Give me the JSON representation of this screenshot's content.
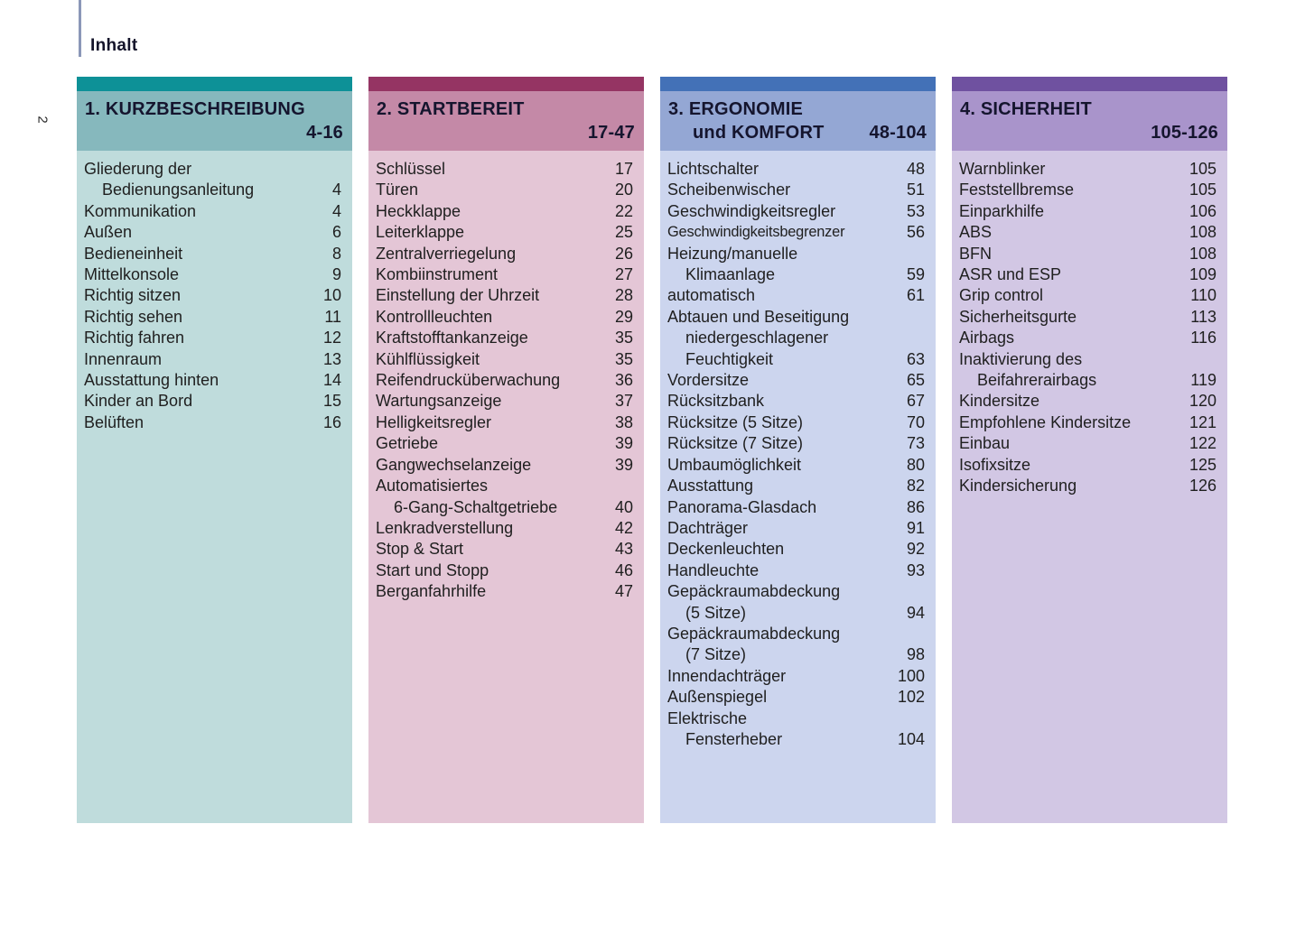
{
  "page": {
    "label": "Inhalt",
    "side_page_number": "2"
  },
  "sections": [
    {
      "title_lines": [
        "1. KURZBESCHREIBUNG"
      ],
      "range": "4-16",
      "colors": {
        "strip": "#0D9197",
        "header": "#86B8BD",
        "body": "#BFDCDC"
      },
      "entries": [
        {
          "lines": [
            "Gliederung der",
            "Bedienungsanleitung"
          ],
          "page": "4"
        },
        {
          "lines": [
            "Kommunikation"
          ],
          "page": "4"
        },
        {
          "lines": [
            "Außen"
          ],
          "page": "6"
        },
        {
          "lines": [
            "Bedieneinheit"
          ],
          "page": "8"
        },
        {
          "lines": [
            "Mittelkonsole"
          ],
          "page": "9"
        },
        {
          "lines": [
            "Richtig sitzen"
          ],
          "page": "10"
        },
        {
          "lines": [
            "Richtig sehen"
          ],
          "page": "11"
        },
        {
          "lines": [
            "Richtig fahren"
          ],
          "page": "12"
        },
        {
          "lines": [
            "Innenraum"
          ],
          "page": "13"
        },
        {
          "lines": [
            "Ausstattung hinten"
          ],
          "page": "14"
        },
        {
          "lines": [
            "Kinder an Bord"
          ],
          "page": "15"
        },
        {
          "lines": [
            "Belüften"
          ],
          "page": "16"
        }
      ]
    },
    {
      "title_lines": [
        "2. STARTBEREIT"
      ],
      "range": "17-47",
      "colors": {
        "strip": "#953463",
        "header": "#C489A7",
        "body": "#E4C6D6"
      },
      "entries": [
        {
          "lines": [
            "Schlüssel"
          ],
          "page": "17"
        },
        {
          "lines": [
            "Türen"
          ],
          "page": "20"
        },
        {
          "lines": [
            "Heckklappe"
          ],
          "page": "22"
        },
        {
          "lines": [
            "Leiterklappe"
          ],
          "page": "25"
        },
        {
          "lines": [
            "Zentralverriegelung"
          ],
          "page": "26"
        },
        {
          "lines": [
            "Kombiinstrument"
          ],
          "page": "27"
        },
        {
          "lines": [
            "Einstellung der Uhrzeit"
          ],
          "page": "28"
        },
        {
          "lines": [
            "Kontrollleuchten"
          ],
          "page": "29"
        },
        {
          "lines": [
            "Kraftstofftankanzeige"
          ],
          "page": "35"
        },
        {
          "lines": [
            "Kühlflüssigkeit"
          ],
          "page": "35"
        },
        {
          "lines": [
            "Reifendrucküberwachung"
          ],
          "page": "36"
        },
        {
          "lines": [
            "Wartungsanzeige"
          ],
          "page": "37"
        },
        {
          "lines": [
            "Helligkeitsregler"
          ],
          "page": "38"
        },
        {
          "lines": [
            "Getriebe"
          ],
          "page": "39"
        },
        {
          "lines": [
            "Gangwechselanzeige"
          ],
          "page": "39"
        },
        {
          "lines": [
            "Automatisiertes",
            "6-Gang-Schaltgetriebe"
          ],
          "page": "40"
        },
        {
          "lines": [
            "Lenkradverstellung"
          ],
          "page": "42"
        },
        {
          "lines": [
            "Stop & Start"
          ],
          "page": "43"
        },
        {
          "lines": [
            "Start und Stopp"
          ],
          "page": "46"
        },
        {
          "lines": [
            "Berganfahrhilfe"
          ],
          "page": "47"
        }
      ]
    },
    {
      "title_lines": [
        "3. ERGONOMIE",
        "und KOMFORT"
      ],
      "range": "48-104",
      "colors": {
        "strip": "#4371B7",
        "header": "#94A7D4",
        "body": "#CCD5EE"
      },
      "entries": [
        {
          "lines": [
            "Lichtschalter"
          ],
          "page": "48"
        },
        {
          "lines": [
            "Scheibenwischer"
          ],
          "page": "51"
        },
        {
          "lines": [
            "Geschwindigkeitsregler"
          ],
          "page": "53"
        },
        {
          "lines": [
            "Geschwindigkeitsbegrenzer"
          ],
          "page": "56",
          "condensed": true
        },
        {
          "lines": [
            "Heizung/manuelle",
            "Klimaanlage"
          ],
          "page": "59"
        },
        {
          "lines": [
            "automatisch"
          ],
          "page": "61"
        },
        {
          "lines": [
            "Abtauen und Beseitigung",
            "niedergeschlagener",
            "Feuchtigkeit"
          ],
          "page": "63"
        },
        {
          "lines": [
            "Vordersitze"
          ],
          "page": "65"
        },
        {
          "lines": [
            "Rücksitzbank"
          ],
          "page": "67"
        },
        {
          "lines": [
            "Rücksitze (5 Sitze)"
          ],
          "page": "70"
        },
        {
          "lines": [
            "Rücksitze (7 Sitze)"
          ],
          "page": "73"
        },
        {
          "lines": [
            "Umbaumöglichkeit"
          ],
          "page": "80"
        },
        {
          "lines": [
            "Ausstattung"
          ],
          "page": "82"
        },
        {
          "lines": [
            "Panorama-Glasdach"
          ],
          "page": "86"
        },
        {
          "lines": [
            "Dachträger"
          ],
          "page": "91"
        },
        {
          "lines": [
            "Deckenleuchten"
          ],
          "page": "92"
        },
        {
          "lines": [
            "Handleuchte"
          ],
          "page": "93"
        },
        {
          "lines": [
            "Gepäckraumabdeckung",
            "(5 Sitze)"
          ],
          "page": "94"
        },
        {
          "lines": [
            "Gepäckraumabdeckung",
            "(7 Sitze)"
          ],
          "page": "98"
        },
        {
          "lines": [
            "Innendachträger"
          ],
          "page": "100"
        },
        {
          "lines": [
            "Außenspiegel"
          ],
          "page": "102"
        },
        {
          "lines": [
            "Elektrische",
            "Fensterheber"
          ],
          "page": "104"
        }
      ]
    },
    {
      "title_lines": [
        "4. SICHERHEIT"
      ],
      "range": "105-126",
      "colors": {
        "strip": "#6F51A0",
        "header": "#A994CB",
        "body": "#D2C7E4"
      },
      "entries": [
        {
          "lines": [
            "Warnblinker"
          ],
          "page": "105"
        },
        {
          "lines": [
            "Feststellbremse"
          ],
          "page": "105"
        },
        {
          "lines": [
            "Einparkhilfe"
          ],
          "page": "106"
        },
        {
          "lines": [
            "ABS"
          ],
          "page": "108"
        },
        {
          "lines": [
            "BFN"
          ],
          "page": "108"
        },
        {
          "lines": [
            "ASR und ESP"
          ],
          "page": "109"
        },
        {
          "lines": [
            "Grip control"
          ],
          "page": "110"
        },
        {
          "lines": [
            "Sicherheitsgurte"
          ],
          "page": "113"
        },
        {
          "lines": [
            "Airbags"
          ],
          "page": "116"
        },
        {
          "lines": [
            "Inaktivierung des",
            "Beifahrerairbags"
          ],
          "page": "119"
        },
        {
          "lines": [
            "Kindersitze"
          ],
          "page": "120"
        },
        {
          "lines": [
            "Empfohlene Kindersitze"
          ],
          "page": "121"
        },
        {
          "lines": [
            "Einbau"
          ],
          "page": "122"
        },
        {
          "lines": [
            "Isofixsitze"
          ],
          "page": "125"
        },
        {
          "lines": [
            "Kindersicherung"
          ],
          "page": "126"
        }
      ]
    }
  ]
}
